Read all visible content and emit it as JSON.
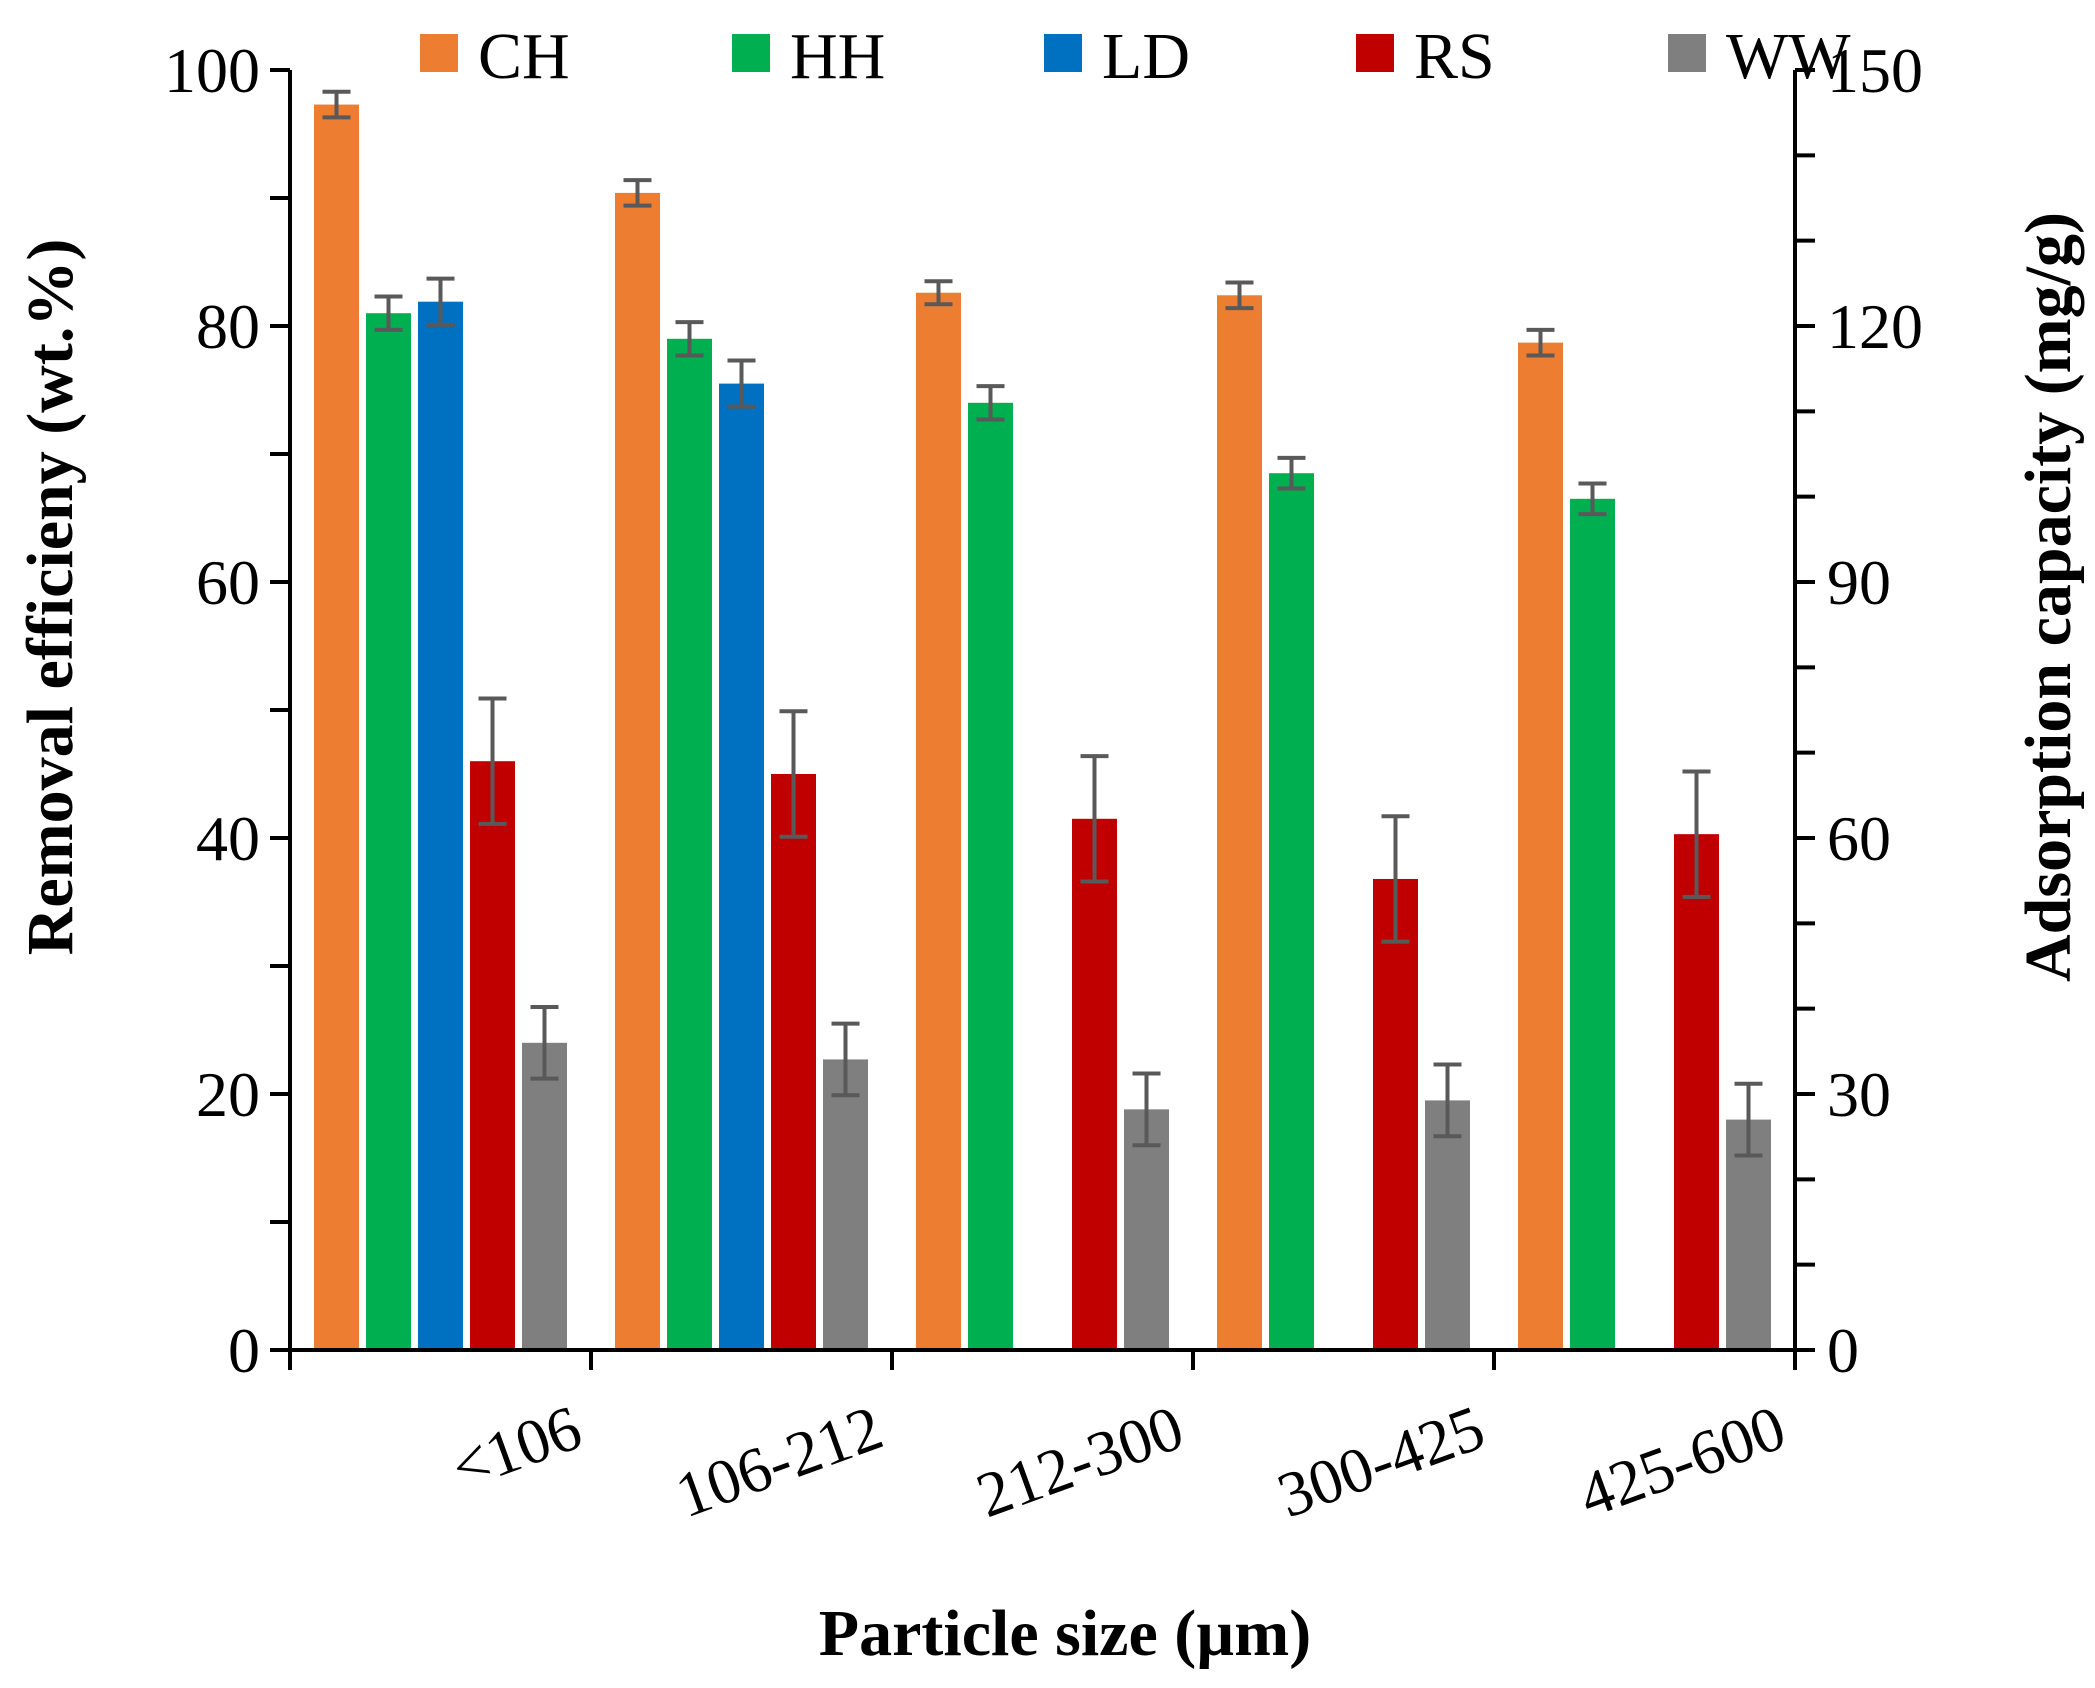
{
  "chart_data": {
    "type": "bar",
    "title": "",
    "xlabel": "Particle size (µm)",
    "ylabel": "Removal efficieny (wt.%)",
    "ylabel_right": "Adsorption capacity (mg/g)",
    "ylim": [
      0,
      100
    ],
    "ylim_right": [
      0,
      150
    ],
    "yticks": [
      "0",
      "20",
      "40",
      "60",
      "80",
      "100"
    ],
    "yticks_right": [
      "0",
      "30",
      "60",
      "90",
      "120",
      "150"
    ],
    "legend_position": "top",
    "categories": [
      "<106",
      "106-212",
      "212-300",
      "300-425",
      "425-600"
    ],
    "series": [
      {
        "name": "CH",
        "color": "#ED7D31",
        "values": [
          97.3,
          90.4,
          82.6,
          82.4,
          78.7
        ],
        "errors": [
          1.0,
          1.0,
          0.9,
          1.0,
          1.0
        ]
      },
      {
        "name": "HH",
        "color": "#00B050",
        "values": [
          81.0,
          79.0,
          74.0,
          68.5,
          66.5
        ],
        "errors": [
          1.3,
          1.3,
          1.3,
          1.2,
          1.2
        ]
      },
      {
        "name": "LD",
        "color": "#0070C0",
        "values": [
          81.9,
          75.5,
          null,
          null,
          null
        ],
        "errors": [
          1.8,
          1.8,
          null,
          null,
          null
        ]
      },
      {
        "name": "RS",
        "color": "#C00000",
        "values": [
          46.0,
          45.0,
          41.5,
          36.8,
          40.3
        ],
        "errors": [
          4.9,
          4.9,
          4.9,
          4.9,
          4.9
        ]
      },
      {
        "name": "WW",
        "color": "#7F7F7F",
        "values": [
          24.0,
          22.7,
          18.8,
          19.5,
          18.0
        ],
        "errors": [
          2.8,
          2.8,
          2.8,
          2.8,
          2.8
        ]
      }
    ]
  }
}
